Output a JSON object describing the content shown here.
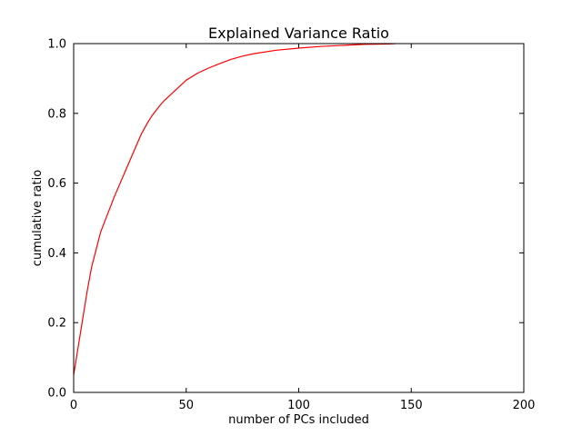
{
  "chart_data": {
    "type": "line",
    "title": "Explained Variance Ratio",
    "xlabel": "number of PCs included",
    "ylabel": "cumulative ratio",
    "xlim": [
      0,
      200
    ],
    "ylim": [
      0.0,
      1.0
    ],
    "xticks": [
      0,
      50,
      100,
      150,
      200
    ],
    "xtick_labels": [
      "0",
      "50",
      "100",
      "150",
      "200"
    ],
    "yticks": [
      0.0,
      0.2,
      0.4,
      0.6,
      0.8,
      1.0
    ],
    "ytick_labels": [
      "0.0",
      "0.2",
      "0.4",
      "0.6",
      "0.8",
      "1.0"
    ],
    "grid": false,
    "series": [
      {
        "color": "#ff0000",
        "x": [
          0,
          1,
          2,
          3,
          4,
          5,
          6,
          8,
          10,
          12,
          15,
          18,
          20,
          22,
          25,
          28,
          30,
          33,
          35,
          38,
          40,
          45,
          50,
          55,
          60,
          65,
          70,
          75,
          80,
          90,
          100,
          110,
          120,
          130,
          140,
          143
        ],
        "y": [
          0.05,
          0.09,
          0.13,
          0.17,
          0.21,
          0.25,
          0.29,
          0.36,
          0.41,
          0.46,
          0.51,
          0.56,
          0.59,
          0.62,
          0.665,
          0.71,
          0.74,
          0.775,
          0.795,
          0.82,
          0.835,
          0.865,
          0.895,
          0.915,
          0.93,
          0.943,
          0.955,
          0.964,
          0.971,
          0.981,
          0.987,
          0.992,
          0.995,
          0.998,
          0.999,
          1.0
        ]
      }
    ]
  }
}
